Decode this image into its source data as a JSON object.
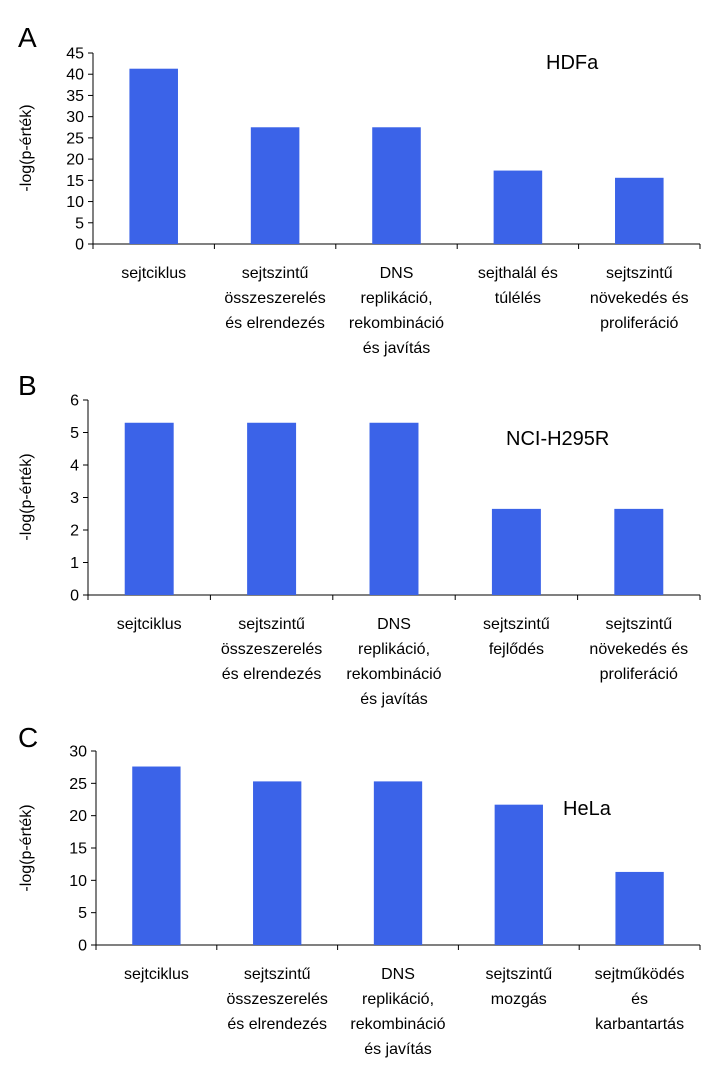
{
  "chart_data": [
    {
      "type": "bar",
      "panel": "A",
      "cell_line": "HDFa",
      "ylabel": "-log(p-érték)",
      "ylim": [
        0,
        45
      ],
      "yticks": [
        0,
        5,
        10,
        15,
        20,
        25,
        30,
        35,
        40,
        45
      ],
      "categories": [
        [
          "sejtciklus"
        ],
        [
          "sejtszintű",
          "összeszerelés",
          "és elrendezés"
        ],
        [
          "DNS",
          "replikáció,",
          "rekombináció",
          "és javítás"
        ],
        [
          "sejthalál és",
          "túlélés"
        ],
        [
          "sejtszintű",
          "növekedés és",
          "proliferáció"
        ]
      ],
      "values": [
        41.3,
        27.5,
        27.5,
        17.3,
        15.6
      ],
      "color": "#3b63e8"
    },
    {
      "type": "bar",
      "panel": "B",
      "cell_line": "NCI-H295R",
      "ylabel": "-log(p-érték)",
      "ylim": [
        0,
        6
      ],
      "yticks": [
        0,
        1,
        2,
        3,
        4,
        5,
        6
      ],
      "categories": [
        [
          "sejtciklus"
        ],
        [
          "sejtszintű",
          "összeszerelés",
          "és elrendezés"
        ],
        [
          "DNS",
          "replikáció,",
          "rekombináció",
          "és javítás"
        ],
        [
          "sejtszintű",
          "fejlődés"
        ],
        [
          "sejtszintű",
          "növekedés és",
          "proliferáció"
        ]
      ],
      "values": [
        5.3,
        5.3,
        5.3,
        2.65,
        2.65
      ],
      "color": "#3b63e8"
    },
    {
      "type": "bar",
      "panel": "C",
      "cell_line": "HeLa",
      "ylabel": "-log(p-érték)",
      "ylim": [
        0,
        30
      ],
      "yticks": [
        0,
        5,
        10,
        15,
        20,
        25,
        30
      ],
      "categories": [
        [
          "sejtciklus"
        ],
        [
          "sejtszintű",
          "összeszerelés",
          "és elrendezés"
        ],
        [
          "DNS",
          "replikáció,",
          "rekombináció",
          "és javítás"
        ],
        [
          "sejtszintű",
          "mozgás"
        ],
        [
          "sejtműködés",
          "és",
          "karbantartás"
        ]
      ],
      "values": [
        27.6,
        25.3,
        25.3,
        21.7,
        11.3
      ],
      "color": "#3b63e8"
    }
  ]
}
